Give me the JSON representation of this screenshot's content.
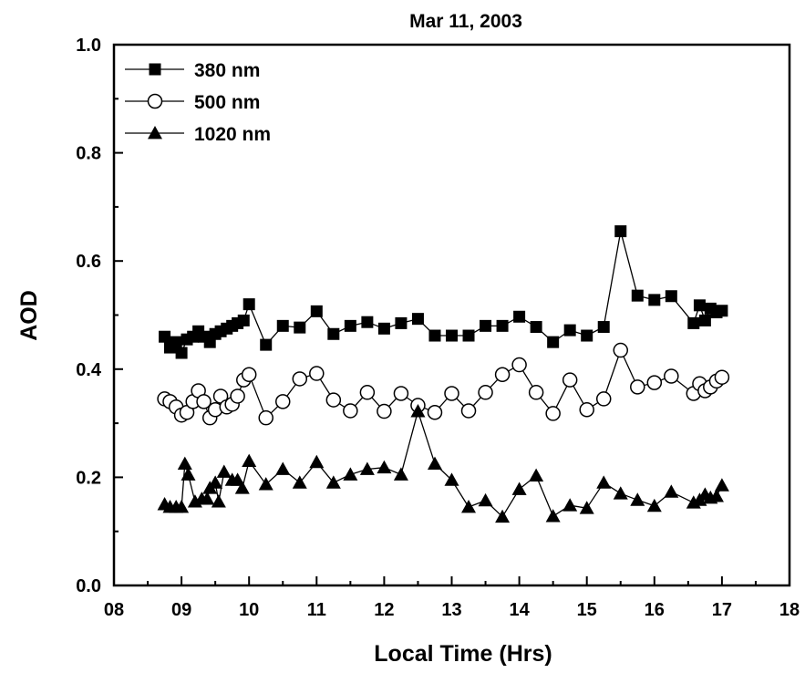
{
  "chart_data": {
    "type": "line",
    "title": "Mar 11, 2003",
    "xlabel": "Local Time (Hrs)",
    "ylabel": "AOD",
    "xlim": [
      8,
      18
    ],
    "ylim": [
      0.0,
      1.0
    ],
    "x_ticks": [
      8,
      9,
      10,
      11,
      12,
      13,
      14,
      15,
      16,
      17,
      18
    ],
    "x_tick_labels": [
      "08",
      "09",
      "10",
      "11",
      "12",
      "13",
      "14",
      "15",
      "16",
      "17",
      "18"
    ],
    "y_ticks": [
      0.0,
      0.2,
      0.4,
      0.6,
      0.8,
      1.0
    ],
    "y_tick_labels": [
      "0.0",
      "0.2",
      "0.4",
      "0.6",
      "0.8",
      "1.0"
    ],
    "grid": false,
    "legend_position": "top-left",
    "series": [
      {
        "name": "380 nm",
        "marker": "filled-square",
        "color": "#000000",
        "points": [
          [
            8.75,
            0.46
          ],
          [
            8.83,
            0.44
          ],
          [
            8.92,
            0.45
          ],
          [
            9.0,
            0.43
          ],
          [
            9.08,
            0.455
          ],
          [
            9.17,
            0.46
          ],
          [
            9.25,
            0.47
          ],
          [
            9.33,
            0.46
          ],
          [
            9.42,
            0.45
          ],
          [
            9.5,
            0.465
          ],
          [
            9.58,
            0.47
          ],
          [
            9.67,
            0.475
          ],
          [
            9.75,
            0.48
          ],
          [
            9.83,
            0.485
          ],
          [
            9.92,
            0.49
          ],
          [
            10.0,
            0.52
          ],
          [
            10.25,
            0.445
          ],
          [
            10.5,
            0.48
          ],
          [
            10.75,
            0.477
          ],
          [
            11.0,
            0.507
          ],
          [
            11.25,
            0.465
          ],
          [
            11.5,
            0.48
          ],
          [
            11.75,
            0.487
          ],
          [
            12.0,
            0.475
          ],
          [
            12.25,
            0.485
          ],
          [
            12.5,
            0.493
          ],
          [
            12.75,
            0.462
          ],
          [
            13.0,
            0.462
          ],
          [
            13.25,
            0.462
          ],
          [
            13.5,
            0.48
          ],
          [
            13.75,
            0.48
          ],
          [
            14.0,
            0.497
          ],
          [
            14.25,
            0.478
          ],
          [
            14.5,
            0.45
          ],
          [
            14.75,
            0.472
          ],
          [
            15.0,
            0.462
          ],
          [
            15.25,
            0.478
          ],
          [
            15.5,
            0.655
          ],
          [
            15.75,
            0.536
          ],
          [
            16.0,
            0.528
          ],
          [
            16.25,
            0.535
          ],
          [
            16.58,
            0.485
          ],
          [
            16.67,
            0.518
          ],
          [
            16.75,
            0.49
          ],
          [
            16.83,
            0.512
          ],
          [
            16.92,
            0.505
          ],
          [
            17.0,
            0.508
          ]
        ]
      },
      {
        "name": "500 nm",
        "marker": "open-circle",
        "color": "#000000",
        "points": [
          [
            8.75,
            0.345
          ],
          [
            8.83,
            0.34
          ],
          [
            8.92,
            0.33
          ],
          [
            9.0,
            0.315
          ],
          [
            9.08,
            0.32
          ],
          [
            9.17,
            0.34
          ],
          [
            9.25,
            0.36
          ],
          [
            9.33,
            0.34
          ],
          [
            9.42,
            0.31
          ],
          [
            9.5,
            0.325
          ],
          [
            9.58,
            0.35
          ],
          [
            9.67,
            0.33
          ],
          [
            9.75,
            0.335
          ],
          [
            9.83,
            0.35
          ],
          [
            9.92,
            0.38
          ],
          [
            10.0,
            0.39
          ],
          [
            10.25,
            0.31
          ],
          [
            10.5,
            0.34
          ],
          [
            10.75,
            0.382
          ],
          [
            11.0,
            0.392
          ],
          [
            11.25,
            0.343
          ],
          [
            11.5,
            0.323
          ],
          [
            11.75,
            0.357
          ],
          [
            12.0,
            0.322
          ],
          [
            12.25,
            0.355
          ],
          [
            12.5,
            0.333
          ],
          [
            12.75,
            0.32
          ],
          [
            13.0,
            0.355
          ],
          [
            13.25,
            0.323
          ],
          [
            13.5,
            0.357
          ],
          [
            13.75,
            0.39
          ],
          [
            14.0,
            0.408
          ],
          [
            14.25,
            0.357
          ],
          [
            14.5,
            0.318
          ],
          [
            14.75,
            0.38
          ],
          [
            15.0,
            0.325
          ],
          [
            15.25,
            0.345
          ],
          [
            15.5,
            0.435
          ],
          [
            15.75,
            0.367
          ],
          [
            16.0,
            0.375
          ],
          [
            16.25,
            0.387
          ],
          [
            16.58,
            0.355
          ],
          [
            16.67,
            0.373
          ],
          [
            16.75,
            0.36
          ],
          [
            16.83,
            0.367
          ],
          [
            16.92,
            0.378
          ],
          [
            17.0,
            0.385
          ]
        ]
      },
      {
        "name": "1020 nm",
        "marker": "filled-triangle",
        "color": "#000000",
        "points": [
          [
            8.75,
            0.15
          ],
          [
            8.83,
            0.145
          ],
          [
            8.92,
            0.145
          ],
          [
            9.0,
            0.145
          ],
          [
            9.05,
            0.225
          ],
          [
            9.1,
            0.205
          ],
          [
            9.2,
            0.155
          ],
          [
            9.3,
            0.16
          ],
          [
            9.38,
            0.16
          ],
          [
            9.42,
            0.18
          ],
          [
            9.5,
            0.19
          ],
          [
            9.55,
            0.155
          ],
          [
            9.63,
            0.21
          ],
          [
            9.75,
            0.195
          ],
          [
            9.83,
            0.195
          ],
          [
            9.9,
            0.18
          ],
          [
            10.0,
            0.23
          ],
          [
            10.25,
            0.187
          ],
          [
            10.5,
            0.215
          ],
          [
            10.75,
            0.19
          ],
          [
            11.0,
            0.228
          ],
          [
            11.25,
            0.19
          ],
          [
            11.5,
            0.205
          ],
          [
            11.75,
            0.215
          ],
          [
            12.0,
            0.218
          ],
          [
            12.25,
            0.205
          ],
          [
            12.5,
            0.322
          ],
          [
            12.75,
            0.225
          ],
          [
            13.0,
            0.195
          ],
          [
            13.25,
            0.145
          ],
          [
            13.5,
            0.157
          ],
          [
            13.75,
            0.127
          ],
          [
            14.0,
            0.178
          ],
          [
            14.25,
            0.203
          ],
          [
            14.5,
            0.128
          ],
          [
            14.75,
            0.148
          ],
          [
            15.0,
            0.143
          ],
          [
            15.25,
            0.19
          ],
          [
            15.5,
            0.17
          ],
          [
            15.75,
            0.158
          ],
          [
            16.0,
            0.147
          ],
          [
            16.25,
            0.173
          ],
          [
            16.58,
            0.153
          ],
          [
            16.67,
            0.158
          ],
          [
            16.75,
            0.168
          ],
          [
            16.83,
            0.162
          ],
          [
            16.92,
            0.165
          ],
          [
            17.0,
            0.185
          ]
        ]
      }
    ]
  }
}
